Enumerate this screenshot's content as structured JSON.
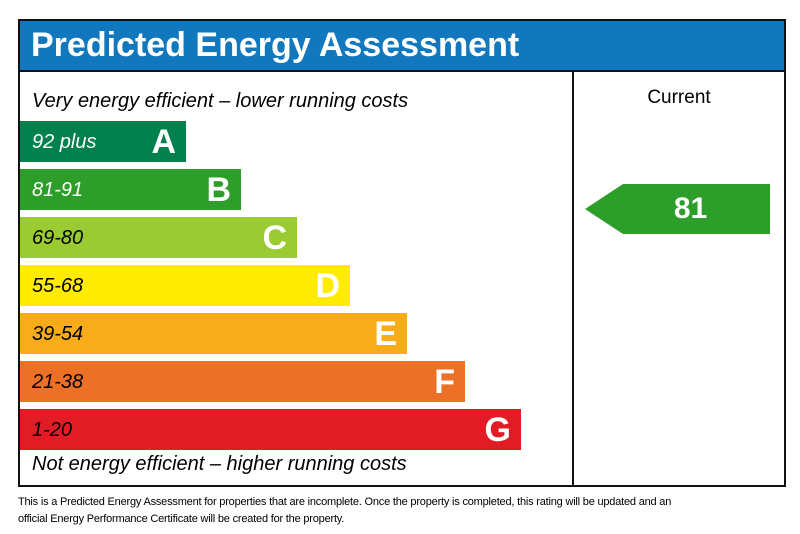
{
  "header": {
    "title": "Predicted Energy Assessment",
    "bg_color": "#1278bd"
  },
  "chart_data": {
    "type": "bar",
    "title": "Predicted Energy Assessment",
    "top_axis_label": "Very energy efficient – lower running costs",
    "bottom_axis_label": "Not energy efficient – higher running costs",
    "bands": [
      {
        "letter": "A",
        "range": "92 plus",
        "color": "#00804d",
        "text_color": "#ffffff"
      },
      {
        "letter": "B",
        "range": "81-91",
        "color": "#2d9e29",
        "text_color": "#ffffff"
      },
      {
        "letter": "C",
        "range": "69-80",
        "color": "#9acb33",
        "text_color": "#000000"
      },
      {
        "letter": "D",
        "range": "55-68",
        "color": "#ffec00",
        "text_color": "#000000"
      },
      {
        "letter": "E",
        "range": "39-54",
        "color": "#f8ac1a",
        "text_color": "#000000"
      },
      {
        "letter": "F",
        "range": "21-38",
        "color": "#ec7026",
        "text_color": "#000000"
      },
      {
        "letter": "G",
        "range": "1-20",
        "color": "#e21c24",
        "text_color": "#000000"
      }
    ],
    "current": {
      "label": "Current",
      "value": "81",
      "band": "B",
      "arrow_color": "#2d9e29"
    }
  },
  "footer": {
    "text": "This is a Predicted Energy Assessment for properties that are incomplete. Once the property is completed, this rating will be updated and an\nofficial Energy Performance Certificate will be created for the property."
  }
}
